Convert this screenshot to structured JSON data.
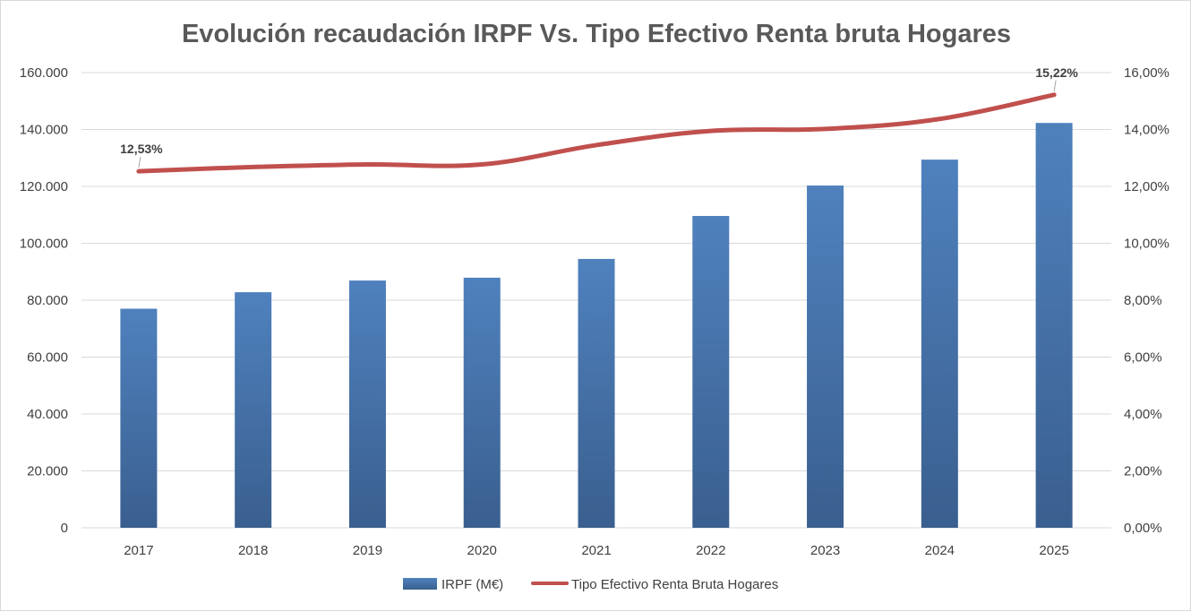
{
  "chart_data": {
    "type": "bar",
    "title": "Evolución recaudación IRPF Vs. Tipo Efectivo Renta bruta Hogares",
    "categories": [
      "2017",
      "2018",
      "2019",
      "2020",
      "2021",
      "2022",
      "2023",
      "2024",
      "2025"
    ],
    "series": [
      {
        "name": "IRPF (M€)",
        "type": "bar",
        "axis": "left",
        "color": "#4a7ebb",
        "values": [
          77000,
          82800,
          86900,
          87900,
          94500,
          109600,
          120300,
          129400,
          142300
        ]
      },
      {
        "name": "Tipo Efectivo Renta Bruta Hogares",
        "type": "line",
        "axis": "right",
        "color": "#c0504d",
        "values": [
          12.53,
          12.68,
          12.77,
          12.77,
          13.45,
          13.95,
          14.02,
          14.37,
          15.22
        ]
      }
    ],
    "y_left": {
      "min": 0,
      "max": 160000,
      "ticks": [
        0,
        20000,
        40000,
        60000,
        80000,
        100000,
        120000,
        140000,
        160000
      ],
      "tick_labels": [
        "0",
        "20.000",
        "40.000",
        "60.000",
        "80.000",
        "100.000",
        "120.000",
        "140.000",
        "160.000"
      ]
    },
    "y_right": {
      "min": 0,
      "max": 16,
      "ticks": [
        0,
        2,
        4,
        6,
        8,
        10,
        12,
        14,
        16
      ],
      "tick_labels": [
        "0,00%",
        "2,00%",
        "4,00%",
        "6,00%",
        "8,00%",
        "10,00%",
        "12,00%",
        "14,00%",
        "16,00%"
      ]
    },
    "data_labels": [
      {
        "series": 1,
        "index": 0,
        "text": "12,53%"
      },
      {
        "series": 1,
        "index": 8,
        "text": "15,22%"
      }
    ],
    "grid": true,
    "legend_position": "bottom"
  }
}
